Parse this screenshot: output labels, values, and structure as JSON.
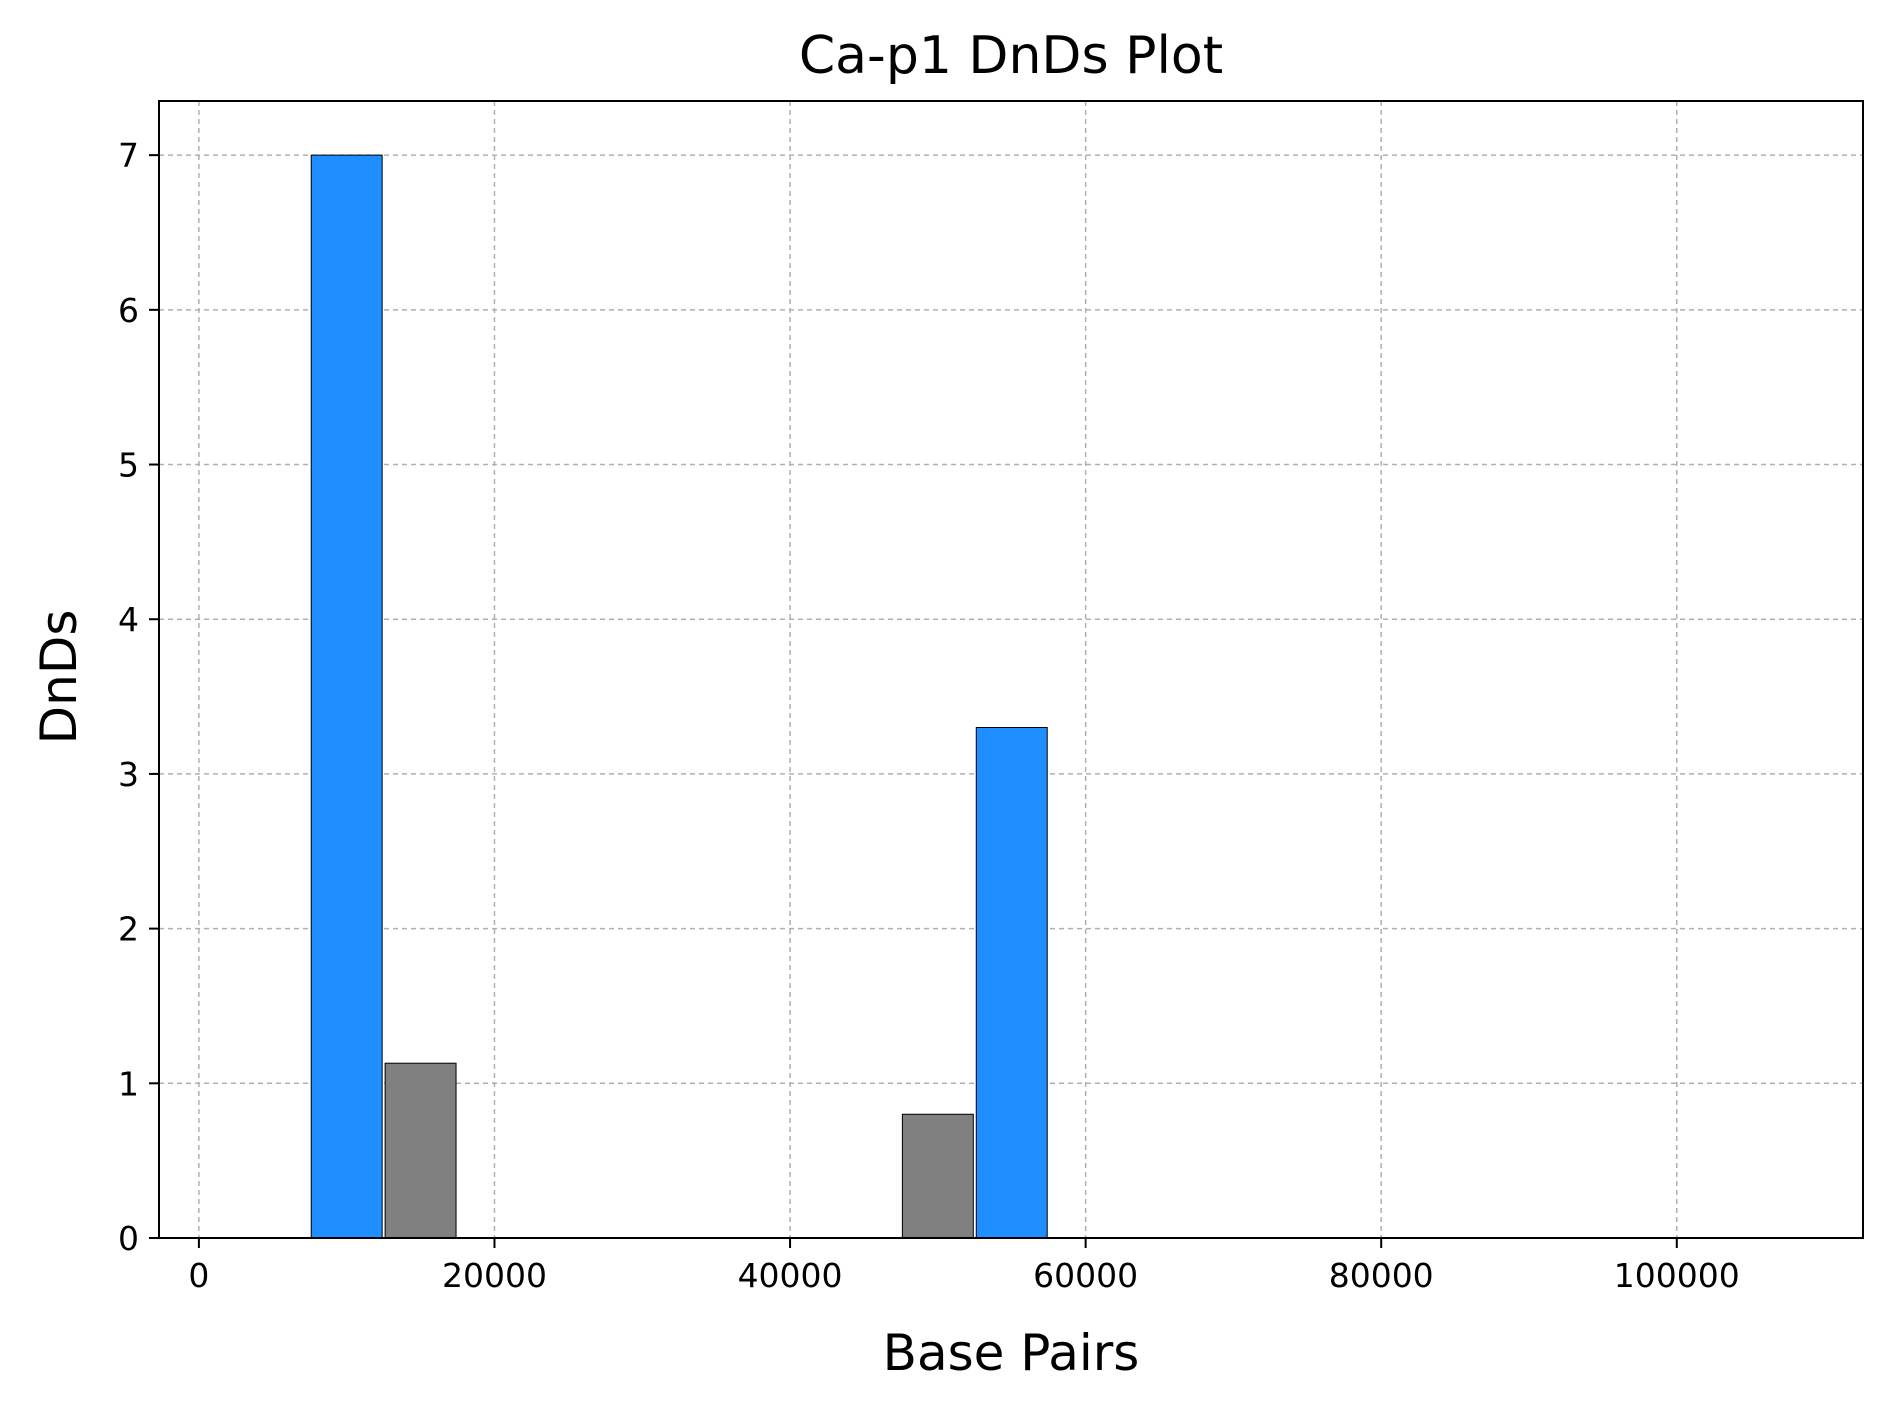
{
  "chart_data": {
    "type": "bar",
    "title": "Ca-p1 DnDs Plot",
    "xlabel": "Base Pairs",
    "ylabel": "DnDs",
    "xlim": [
      -2700,
      112600
    ],
    "ylim": [
      0,
      7.35
    ],
    "xticks": [
      0,
      20000,
      40000,
      60000,
      80000,
      100000
    ],
    "yticks": [
      0,
      1,
      2,
      3,
      4,
      5,
      6,
      7
    ],
    "grid": true,
    "bar_width": 4800,
    "colors": {
      "blue": "#1f8fff",
      "gray": "#808080"
    },
    "bars": [
      {
        "x": 10000,
        "value": 7.0,
        "color": "blue"
      },
      {
        "x": 15000,
        "value": 1.13,
        "color": "gray"
      },
      {
        "x": 50000,
        "value": 0.8,
        "color": "gray"
      },
      {
        "x": 55000,
        "value": 3.3,
        "color": "blue"
      }
    ]
  }
}
